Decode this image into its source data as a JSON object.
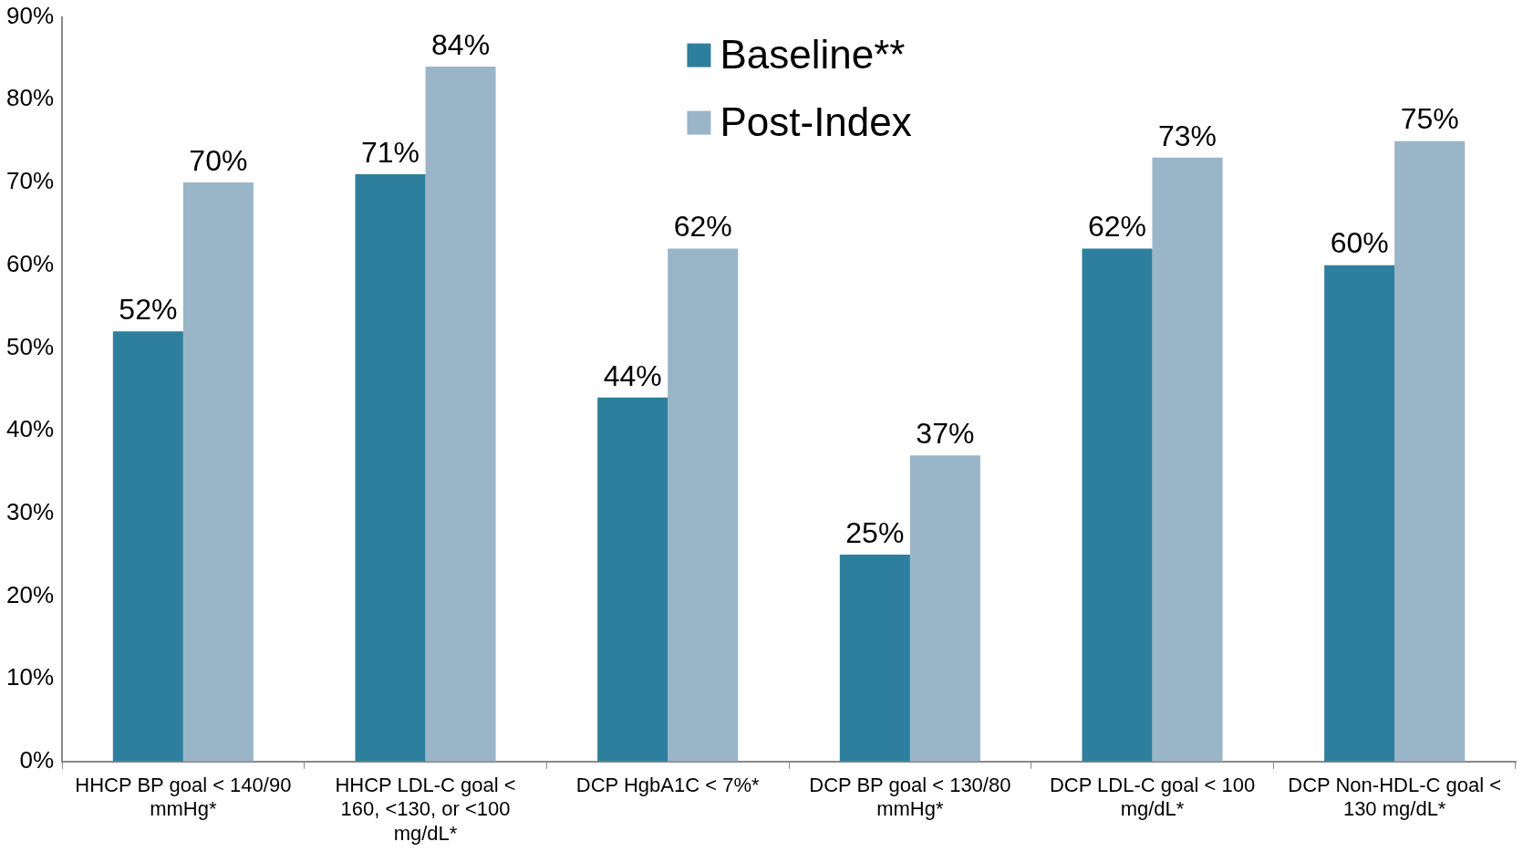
{
  "chart_data": {
    "type": "bar",
    "categories": [
      "HHCP BP goal < 140/90 mmHg*",
      "HHCP LDL-C goal < 160, <130, or <100 mg/dL*",
      "DCP HgbA1C < 7%*",
      "DCP BP goal < 130/80 mmHg*",
      "DCP LDL-C goal < 100 mg/dL*",
      "DCP Non-HDL-C goal < 130 mg/dL*"
    ],
    "series": [
      {
        "name": "Baseline**",
        "color": "#2e7f9e",
        "values": [
          52,
          71,
          44,
          25,
          62,
          60
        ],
        "value_labels": [
          "52%",
          "71%",
          "44%",
          "25%",
          "62%",
          "60%"
        ]
      },
      {
        "name": "Post-Index",
        "color": "#9bb5c8",
        "values": [
          70,
          84,
          62,
          37,
          73,
          75
        ],
        "value_labels": [
          "70%",
          "84%",
          "62%",
          "37%",
          "73%",
          "75%"
        ]
      }
    ],
    "ylim": [
      0,
      90
    ],
    "yticks": [
      {
        "value": 0,
        "label": "0%"
      },
      {
        "value": 10,
        "label": "10%"
      },
      {
        "value": 20,
        "label": "20%"
      },
      {
        "value": 30,
        "label": "30%"
      },
      {
        "value": 40,
        "label": "40%"
      },
      {
        "value": 50,
        "label": "50%"
      },
      {
        "value": 60,
        "label": "60%"
      },
      {
        "value": 70,
        "label": "70%"
      },
      {
        "value": 80,
        "label": "80%"
      },
      {
        "value": 90,
        "label": "90%"
      }
    ],
    "grid": false,
    "legend": "top"
  }
}
